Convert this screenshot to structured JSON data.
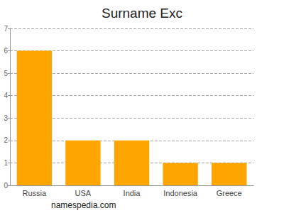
{
  "chart_data": {
    "type": "bar",
    "title": "Surname Exc",
    "categories": [
      "Russia",
      "USA",
      "India",
      "Indonesia",
      "Greece"
    ],
    "values": [
      6,
      2,
      2,
      1,
      1
    ],
    "color": "#ffa500",
    "ylim": [
      0,
      7
    ],
    "yticks": [
      0,
      1,
      2,
      3,
      4,
      5,
      6,
      7
    ],
    "grid": true,
    "annotation": "namespedia.com"
  }
}
